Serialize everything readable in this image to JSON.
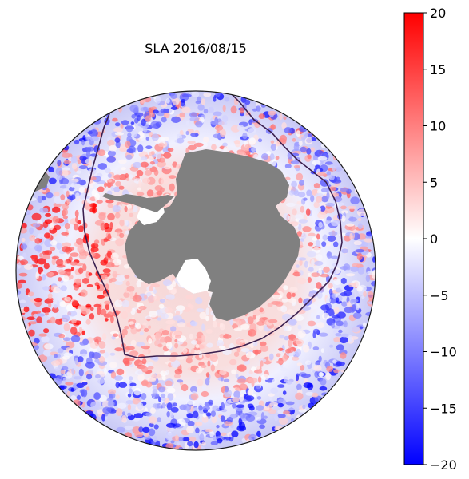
{
  "map": {
    "title": "SLA 2016/08/15",
    "projection": "south-polar-stereographic",
    "field": "sea level anomaly",
    "land_color": "#808080",
    "contour_color": "#3a1f4f"
  },
  "colorbar": {
    "colormap": "bwr",
    "vmin": -20,
    "vmax": 20,
    "color_low": "#0000ff",
    "color_mid": "#ffffff",
    "color_high": "#ff0000",
    "ticks": [
      {
        "value": 20,
        "label": "20"
      },
      {
        "value": 15,
        "label": "15"
      },
      {
        "value": 10,
        "label": "10"
      },
      {
        "value": 5,
        "label": "5"
      },
      {
        "value": 0,
        "label": "0"
      },
      {
        "value": -5,
        "label": "−5"
      },
      {
        "value": -10,
        "label": "−10"
      },
      {
        "value": -15,
        "label": "−15"
      },
      {
        "value": -20,
        "label": "−20"
      }
    ]
  }
}
